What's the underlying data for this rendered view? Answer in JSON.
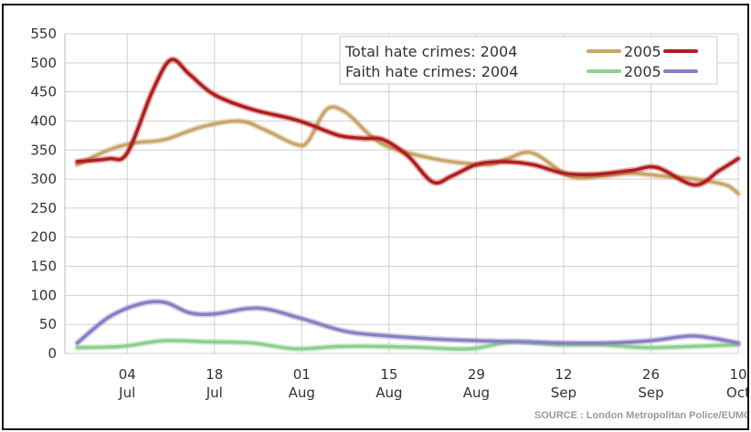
{
  "chart_data": {
    "type": "line",
    "title": "",
    "xlabel": "",
    "ylabel": "",
    "ylim": [
      0,
      550
    ],
    "yticks": [
      0,
      50,
      100,
      150,
      200,
      250,
      300,
      350,
      400,
      450,
      500,
      550
    ],
    "x_domain": [
      "2004-06-24",
      "2004-10-10"
    ],
    "xticks": [
      {
        "date": "2004-07-04",
        "line1": "04",
        "line2": "Jul"
      },
      {
        "date": "2004-07-18",
        "line1": "18",
        "line2": "Jul"
      },
      {
        "date": "2004-08-01",
        "line1": "01",
        "line2": "Aug"
      },
      {
        "date": "2004-08-15",
        "line1": "15",
        "line2": "Aug"
      },
      {
        "date": "2004-08-29",
        "line1": "29",
        "line2": "Aug"
      },
      {
        "date": "2004-09-12",
        "line1": "12",
        "line2": "Sep"
      },
      {
        "date": "2004-09-26",
        "line1": "26",
        "line2": "Sep"
      },
      {
        "date": "2004-10-10",
        "line1": "10",
        "line2": "Oct"
      }
    ],
    "grid": true,
    "legend_position": "top-right",
    "legend": {
      "row1_label": "Total hate crimes: 2004",
      "row1_label2": "2005",
      "row2_label": "Faith hate crimes: 2004",
      "row2_label2": "2005"
    },
    "series": [
      {
        "name": "Total hate crimes: 2004",
        "color": "#c9a66b",
        "x": [
          "2004-06-26",
          "2004-07-01",
          "2004-07-05",
          "2004-07-10",
          "2004-07-16",
          "2004-07-22",
          "2004-07-26",
          "2004-07-31",
          "2004-08-02",
          "2004-08-05",
          "2004-08-08",
          "2004-08-12",
          "2004-08-15",
          "2004-08-20",
          "2004-08-25",
          "2004-08-31",
          "2004-09-03",
          "2004-09-07",
          "2004-09-13",
          "2004-09-18",
          "2004-09-23",
          "2004-09-28",
          "2004-10-03",
          "2004-10-08",
          "2004-10-10"
        ],
        "y": [
          325,
          350,
          362,
          368,
          390,
          400,
          385,
          360,
          365,
          420,
          415,
          375,
          355,
          340,
          330,
          325,
          335,
          345,
          305,
          305,
          310,
          305,
          300,
          290,
          275
        ]
      },
      {
        "name": "2005",
        "color": "#b01e1e",
        "x": [
          "2004-06-26",
          "2004-07-01",
          "2004-07-04",
          "2004-07-08",
          "2004-07-11",
          "2004-07-14",
          "2004-07-18",
          "2004-07-24",
          "2004-07-30",
          "2004-08-02",
          "2004-08-07",
          "2004-08-11",
          "2004-08-14",
          "2004-08-18",
          "2004-08-22",
          "2004-08-25",
          "2004-08-29",
          "2004-09-02",
          "2004-09-07",
          "2004-09-12",
          "2004-09-17",
          "2004-09-23",
          "2004-09-27",
          "2004-10-03",
          "2004-10-07",
          "2004-10-10"
        ],
        "y": [
          330,
          335,
          345,
          450,
          505,
          480,
          445,
          420,
          405,
          395,
          375,
          370,
          368,
          340,
          295,
          305,
          325,
          330,
          325,
          310,
          308,
          315,
          320,
          290,
          315,
          335
        ]
      },
      {
        "name": "Faith hate crimes: 2004",
        "color": "#8fcf8f",
        "x": [
          "2004-06-26",
          "2004-07-03",
          "2004-07-10",
          "2004-07-17",
          "2004-07-24",
          "2004-07-31",
          "2004-08-07",
          "2004-08-14",
          "2004-08-21",
          "2004-08-28",
          "2004-09-04",
          "2004-09-11",
          "2004-09-18",
          "2004-09-25",
          "2004-10-02",
          "2004-10-10"
        ],
        "y": [
          10,
          12,
          22,
          20,
          18,
          8,
          12,
          12,
          10,
          8,
          20,
          15,
          15,
          10,
          12,
          15
        ]
      },
      {
        "name": "2005",
        "color": "#8a7fc4",
        "x": [
          "2004-06-26",
          "2004-07-01",
          "2004-07-06",
          "2004-07-10",
          "2004-07-14",
          "2004-07-18",
          "2004-07-25",
          "2004-08-01",
          "2004-08-08",
          "2004-08-15",
          "2004-08-22",
          "2004-08-29",
          "2004-09-05",
          "2004-09-12",
          "2004-09-19",
          "2004-09-26",
          "2004-10-03",
          "2004-10-10"
        ],
        "y": [
          18,
          62,
          85,
          88,
          70,
          68,
          78,
          60,
          38,
          30,
          25,
          22,
          20,
          18,
          18,
          22,
          30,
          18
        ]
      }
    ]
  },
  "source": "SOURCE : London Metropolitan Police/EUMC"
}
